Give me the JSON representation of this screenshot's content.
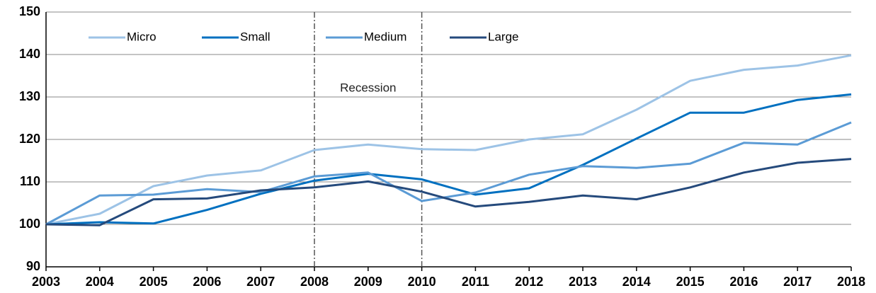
{
  "chart_data": {
    "type": "line",
    "x": [
      2003,
      2004,
      2005,
      2006,
      2007,
      2008,
      2009,
      2010,
      2011,
      2012,
      2013,
      2014,
      2015,
      2016,
      2017,
      2018
    ],
    "series": [
      {
        "name": "Micro",
        "color": "#9dc3e6",
        "values": [
          100,
          102.5,
          109,
          111.5,
          112.7,
          117.5,
          118.8,
          117.7,
          117.5,
          120,
          121.2,
          127,
          133.8,
          136.4,
          137.4,
          139.8
        ]
      },
      {
        "name": "Small",
        "color": "#0070c0",
        "values": [
          100,
          100.5,
          100.2,
          103.4,
          107.2,
          110.3,
          111.9,
          110.6,
          107.0,
          108.5,
          114.0,
          120.2,
          126.3,
          126.3,
          129.3,
          130.6
        ]
      },
      {
        "name": "Medium",
        "color": "#5b9bd5",
        "values": [
          100,
          106.8,
          107.0,
          108.3,
          107.6,
          111.3,
          112.2,
          105.5,
          107.5,
          111.7,
          113.7,
          113.3,
          114.3,
          119.2,
          118.8,
          124.0
        ]
      },
      {
        "name": "Large",
        "color": "#254a7c",
        "values": [
          100,
          99.8,
          105.9,
          106.1,
          108.0,
          108.7,
          110.1,
          107.7,
          104.2,
          105.3,
          106.8,
          105.9,
          108.7,
          112.2,
          114.5,
          115.4
        ]
      }
    ],
    "xlim": [
      2003,
      2018
    ],
    "xticks": [
      2003,
      2004,
      2005,
      2006,
      2007,
      2008,
      2009,
      2010,
      2011,
      2012,
      2013,
      2014,
      2015,
      2016,
      2017,
      2018
    ],
    "ylim": [
      90,
      150
    ],
    "yticks": [
      90,
      100,
      110,
      120,
      130,
      140,
      150
    ],
    "grid": true,
    "legend": "top-left",
    "recession": {
      "label": "Recession",
      "start": 2008,
      "end": 2010
    }
  }
}
